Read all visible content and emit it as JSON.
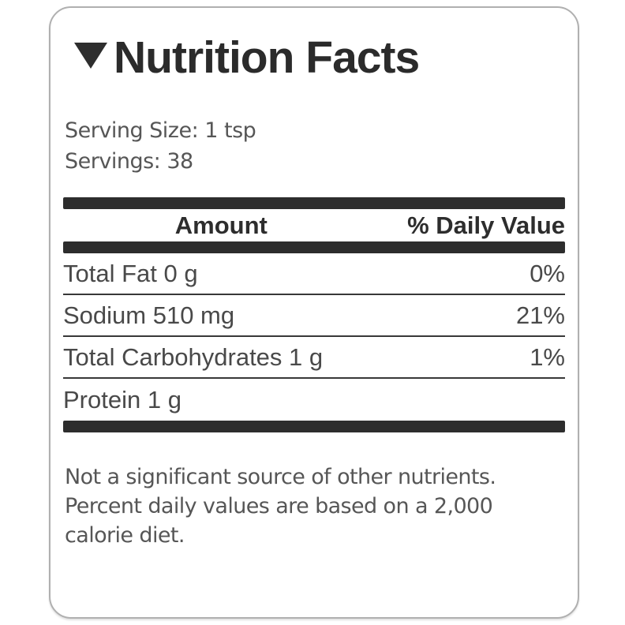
{
  "header": {
    "title": "Nutrition Facts",
    "collapse_icon": "triangle-down"
  },
  "serving": {
    "size_line": "Serving Size: 1 tsp",
    "servings_line": "Servings: 38"
  },
  "table": {
    "header": {
      "amount": "Amount",
      "daily_value": "% Daily Value"
    },
    "rows": [
      {
        "label": "Total Fat 0 g",
        "daily_value": "0%"
      },
      {
        "label": "Sodium 510 mg",
        "daily_value": "21%"
      },
      {
        "label": "Total Carbohydrates 1 g",
        "daily_value": "1%"
      },
      {
        "label": "Protein 1 g",
        "daily_value": ""
      }
    ]
  },
  "footnote": {
    "text": "Not a significant source of other nutrients.\nPercent daily values are based on a 2,000\ncalorie diet."
  },
  "colors": {
    "ink": "#2d2d2d",
    "row_text": "#494949",
    "muted_text": "#565656",
    "separator": "#383838",
    "card_border": "#b0b0b0",
    "background": "#ffffff"
  }
}
